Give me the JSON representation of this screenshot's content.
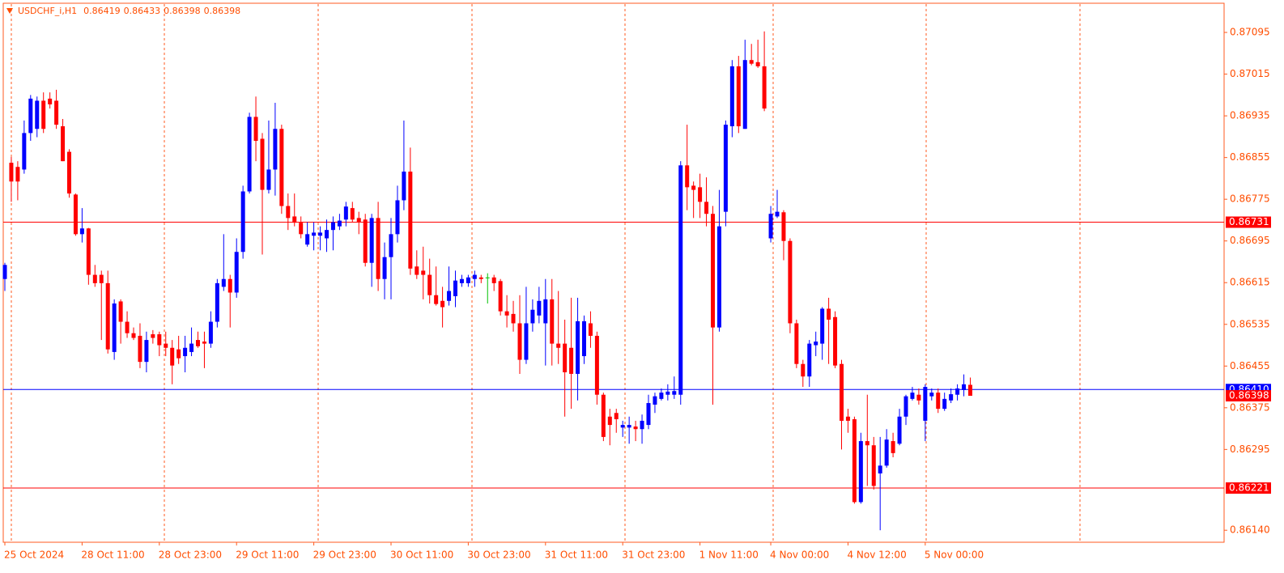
{
  "chart_data": {
    "type": "candlestick",
    "symbol": "USDCHF_i,H1",
    "ohlc_label": [
      0.86419,
      0.86433,
      0.86398,
      0.86398
    ],
    "categories": [
      "25 Oct 2024",
      null,
      null,
      null,
      null,
      null,
      null,
      null,
      null,
      null,
      null,
      null,
      "28 Oct 11:00",
      null,
      null,
      null,
      null,
      null,
      null,
      null,
      null,
      null,
      null,
      null,
      "28 Oct 23:00",
      null,
      null,
      null,
      null,
      null,
      null,
      null,
      null,
      null,
      null,
      null,
      "29 Oct 11:00",
      null,
      null,
      null,
      null,
      null,
      null,
      null,
      null,
      null,
      null,
      null,
      "29 Oct 23:00",
      null,
      null,
      null,
      null,
      null,
      null,
      null,
      null,
      null,
      null,
      null,
      "30 Oct 11:00",
      null,
      null,
      null,
      null,
      null,
      null,
      null,
      null,
      null,
      null,
      null,
      "30 Oct 23:00",
      null,
      null,
      null,
      null,
      null,
      null,
      null,
      null,
      null,
      null,
      null,
      "31 Oct 11:00",
      null,
      null,
      null,
      null,
      null,
      null,
      null,
      null,
      null,
      null,
      null,
      "31 Oct 23:00",
      null,
      null,
      null,
      null,
      null,
      null,
      null,
      null,
      null,
      null,
      null,
      "1 Nov 11:00",
      null,
      null,
      null,
      null,
      null,
      null,
      null,
      null,
      null,
      null,
      "4 Nov 00:00",
      null,
      null,
      null,
      null,
      null,
      null,
      null,
      null,
      null,
      null,
      null,
      "4 Nov 12:00",
      null,
      null,
      null,
      null,
      null,
      null,
      null,
      null,
      null,
      null,
      null,
      "5 Nov 00:00",
      null,
      null,
      null,
      null,
      null,
      null,
      null
    ],
    "open": [
      0.86622,
      0.86845,
      0.86837,
      0.86832,
      0.86902,
      0.8691,
      0.86964,
      0.86968,
      0.86964,
      0.86915,
      0.86866,
      0.86784,
      0.86708,
      0.86719,
      0.8663,
      0.8663,
      0.86614,
      0.86482,
      0.86579,
      0.8654,
      0.86518,
      0.86513,
      0.86463,
      0.86516,
      0.86516,
      0.86498,
      0.8649,
      0.86487,
      0.86474,
      0.86482,
      0.86505,
      0.86502,
      0.86498,
      0.8654,
      0.86607,
      0.86622,
      0.86596,
      0.86674,
      0.8679,
      0.86933,
      0.86891,
      0.86793,
      0.86832,
      0.8691,
      0.86762,
      0.86742,
      0.8673,
      0.86688,
      0.86705,
      0.86705,
      0.867,
      0.86716,
      0.86723,
      0.86736,
      0.86758,
      0.86739,
      0.86736,
      0.86653,
      0.86739,
      0.86622,
      0.86664,
      0.86708,
      0.86773,
      0.86828,
      0.86646,
      0.86638,
      0.8663,
      0.86591,
      0.8658,
      0.8658,
      0.86589,
      0.86614,
      0.86614,
      0.86622,
      0.86625,
      0.86625,
      0.86625,
      0.86618,
      0.8656,
      0.86555,
      0.86537,
      0.86467,
      0.86537,
      0.86552,
      0.86537,
      0.86583,
      0.86498,
      0.86498,
      0.8649,
      0.8644,
      0.86474,
      0.86537,
      0.86513,
      0.864,
      0.86358,
      0.86365,
      0.86337,
      0.86337,
      0.86339,
      0.86334,
      0.86342,
      0.86381,
      0.86392,
      0.864,
      0.864,
      0.864,
      0.8684,
      0.86801,
      0.86798,
      0.8677,
      0.86747,
      0.86529,
      0.86751,
      0.86915,
      0.8703,
      0.8691,
      0.87042,
      0.87038,
      0.8703,
      0.867,
      0.86742,
      0.8675,
      0.86695,
      0.86537,
      0.86459,
      0.86435,
      0.86495,
      0.86498,
      0.86565,
      0.86549,
      0.86459,
      0.86358,
      0.86353,
      0.86194,
      0.86311,
      0.86303,
      0.86249,
      0.86264,
      0.86311,
      0.86306,
      0.86358,
      0.86392,
      0.864,
      0.8635,
      0.86397,
      0.86404,
      0.86373,
      0.86389,
      0.864,
      0.86409,
      0.86419
    ],
    "high": [
      0.86653,
      0.86856,
      0.86848,
      0.86926,
      0.86975,
      0.86972,
      0.8698,
      0.8698,
      0.86985,
      0.86929,
      0.86871,
      0.86786,
      0.86758,
      0.8672,
      0.86649,
      0.86638,
      0.86638,
      0.86583,
      0.86583,
      0.8656,
      0.86529,
      0.86537,
      0.86521,
      0.86524,
      0.86521,
      0.86521,
      0.86505,
      0.86513,
      0.86513,
      0.86529,
      0.86521,
      0.86521,
      0.8656,
      0.86622,
      0.86708,
      0.8663,
      0.867,
      0.86801,
      0.86941,
      0.86972,
      0.86902,
      0.86926,
      0.8696,
      0.86918,
      0.86786,
      0.86786,
      0.86742,
      0.86731,
      0.86731,
      0.86723,
      0.86736,
      0.86742,
      0.86747,
      0.8677,
      0.8677,
      0.86751,
      0.86747,
      0.86747,
      0.8677,
      0.86692,
      0.86739,
      0.86801,
      0.86926,
      0.86874,
      0.86677,
      0.86684,
      0.86661,
      0.86646,
      0.86607,
      0.86646,
      0.86638,
      0.8663,
      0.8663,
      0.86638,
      0.8663,
      0.86633,
      0.8663,
      0.86622,
      0.86591,
      0.8658,
      0.86591,
      0.86607,
      0.86583,
      0.86607,
      0.86622,
      0.86622,
      0.86599,
      0.86544,
      0.86586,
      0.86586,
      0.86552,
      0.8656,
      0.86521,
      0.86404,
      0.86373,
      0.86373,
      0.8635,
      0.86358,
      0.8635,
      0.86362,
      0.864,
      0.86404,
      0.86412,
      0.8642,
      0.86435,
      0.86848,
      0.86918,
      0.86809,
      0.86824,
      0.86817,
      0.86762,
      0.86793,
      0.86926,
      0.87042,
      0.8705,
      0.87081,
      0.87073,
      0.87081,
      0.87097,
      0.86762,
      0.86793,
      0.86754,
      0.867,
      0.86544,
      0.86467,
      0.86505,
      0.86521,
      0.86568,
      0.86586,
      0.8656,
      0.86467,
      0.86373,
      0.86358,
      0.86327,
      0.864,
      0.86319,
      0.86319,
      0.86334,
      0.86327,
      0.86373,
      0.864,
      0.86415,
      0.86412,
      0.8642,
      0.86412,
      0.86412,
      0.86404,
      0.86412,
      0.8642,
      0.86439,
      0.86433
    ],
    "low": [
      0.86599,
      0.8677,
      0.86773,
      0.86824,
      0.86887,
      0.86894,
      0.86902,
      0.86949,
      0.8691,
      0.86848,
      0.86778,
      0.86705,
      0.86692,
      0.86611,
      0.86607,
      0.86505,
      0.86479,
      0.86467,
      0.86498,
      0.86509,
      0.86505,
      0.86451,
      0.86443,
      0.86498,
      0.86474,
      0.86474,
      0.8642,
      0.86459,
      0.86443,
      0.86474,
      0.8649,
      0.86451,
      0.8649,
      0.86529,
      0.86599,
      0.86529,
      0.86586,
      0.86661,
      0.86786,
      0.86848,
      0.86669,
      0.86786,
      0.86782,
      0.86747,
      0.86716,
      0.86723,
      0.867,
      0.86684,
      0.86677,
      0.86677,
      0.86674,
      0.86677,
      0.86716,
      0.86723,
      0.86731,
      0.86708,
      0.86646,
      0.86607,
      0.86599,
      0.86583,
      0.86583,
      0.86692,
      0.86754,
      0.8663,
      0.86622,
      0.86583,
      0.86575,
      0.86571,
      0.86529,
      0.86571,
      0.86568,
      0.86607,
      0.86607,
      0.86607,
      0.86614,
      0.86575,
      0.86599,
      0.86552,
      0.86529,
      0.86521,
      0.8644,
      0.86459,
      0.86521,
      0.86537,
      0.86456,
      0.86456,
      0.86459,
      0.86358,
      0.86373,
      0.86389,
      0.86459,
      0.8649,
      0.86381,
      0.86311,
      0.86303,
      0.86327,
      0.86319,
      0.86306,
      0.86311,
      0.86306,
      0.86334,
      0.86365,
      0.86389,
      0.86389,
      0.86392,
      0.86381,
      0.86754,
      0.86739,
      0.86739,
      0.86723,
      0.86381,
      0.86521,
      0.86723,
      0.86894,
      0.86902,
      0.8691,
      0.87032,
      0.87027,
      0.86944,
      0.86692,
      0.86739,
      0.86658,
      0.86518,
      0.86451,
      0.86415,
      0.86415,
      0.86474,
      0.86467,
      0.86459,
      0.86451,
      0.86295,
      0.86327,
      0.86191,
      0.86191,
      0.86225,
      0.86218,
      0.8614,
      0.8626,
      0.8628,
      0.86303,
      0.86342,
      0.86389,
      0.86381,
      0.86311,
      0.86389,
      0.86365,
      0.86369,
      0.86384,
      0.86389,
      0.86397,
      0.86398
    ],
    "close": [
      0.86649,
      0.86809,
      0.86809,
      0.86902,
      0.86968,
      0.86964,
      0.8691,
      0.86957,
      0.86918,
      0.86848,
      0.86786,
      0.86708,
      0.86719,
      0.8663,
      0.86614,
      0.86614,
      0.86487,
      0.86575,
      0.8654,
      0.86518,
      0.86509,
      0.86463,
      0.86505,
      0.86509,
      0.86495,
      0.8649,
      0.86456,
      0.8647,
      0.8649,
      0.86498,
      0.86493,
      0.86498,
      0.8654,
      0.86614,
      0.86622,
      0.86596,
      0.86674,
      0.8679,
      0.86933,
      0.86887,
      0.86793,
      0.86832,
      0.8691,
      0.86762,
      0.86739,
      0.8673,
      0.86708,
      0.86708,
      0.86711,
      0.86711,
      0.86716,
      0.86731,
      0.86734,
      0.86761,
      0.86736,
      0.86731,
      0.86653,
      0.86739,
      0.86622,
      0.86664,
      0.86708,
      0.86773,
      0.86828,
      0.86642,
      0.8663,
      0.8663,
      0.86591,
      0.86574,
      0.86568,
      0.86599,
      0.86619,
      0.86622,
      0.86625,
      0.8663,
      0.86622,
      0.86625,
      0.86614,
      0.8656,
      0.86552,
      0.86537,
      0.86467,
      0.86537,
      0.86563,
      0.8658,
      0.86583,
      0.86498,
      0.8649,
      0.86443,
      0.8644,
      0.86541,
      0.86541,
      0.86513,
      0.864,
      0.86319,
      0.86342,
      0.86353,
      0.86342,
      0.86342,
      0.86334,
      0.8635,
      0.86384,
      0.86397,
      0.86404,
      0.86406,
      0.86407,
      0.8684,
      0.86798,
      0.86793,
      0.8677,
      0.86747,
      0.86529,
      0.86723,
      0.86918,
      0.8703,
      0.86915,
      0.87042,
      0.87035,
      0.8703,
      0.86949,
      0.86747,
      0.86751,
      0.86695,
      0.86537,
      0.86459,
      0.86435,
      0.86498,
      0.86502,
      0.86565,
      0.86544,
      0.86456,
      0.8635,
      0.8635,
      0.86194,
      0.86311,
      0.86303,
      0.86225,
      0.86264,
      0.86314,
      0.86288,
      0.86358,
      0.86397,
      0.86404,
      0.86389,
      0.86415,
      0.86404,
      0.86373,
      0.86392,
      0.86401,
      0.86412,
      0.8642,
      0.86398
    ],
    "up_color": "#0000ff",
    "down_color": "#ff0000",
    "doji_color": "#00c000",
    "ylim": [
      0.86117,
      0.87151
    ],
    "yticks": [
      0.87095,
      0.87015,
      0.86935,
      0.86855,
      0.86775,
      0.86695,
      0.86615,
      0.86535,
      0.86455,
      0.86375,
      0.86295,
      {
        "value": 0.8614,
        "label": "0.86140"
      }
    ],
    "hlines": [
      {
        "value": 0.86731,
        "color": "#ff0000"
      },
      {
        "value": 0.8641,
        "label": "0.86410",
        "color": "#0000ff"
      },
      {
        "value": 0.86221,
        "color": "#ff0000"
      }
    ],
    "bid": {
      "value": 0.86398,
      "color": "#ff0000"
    }
  }
}
